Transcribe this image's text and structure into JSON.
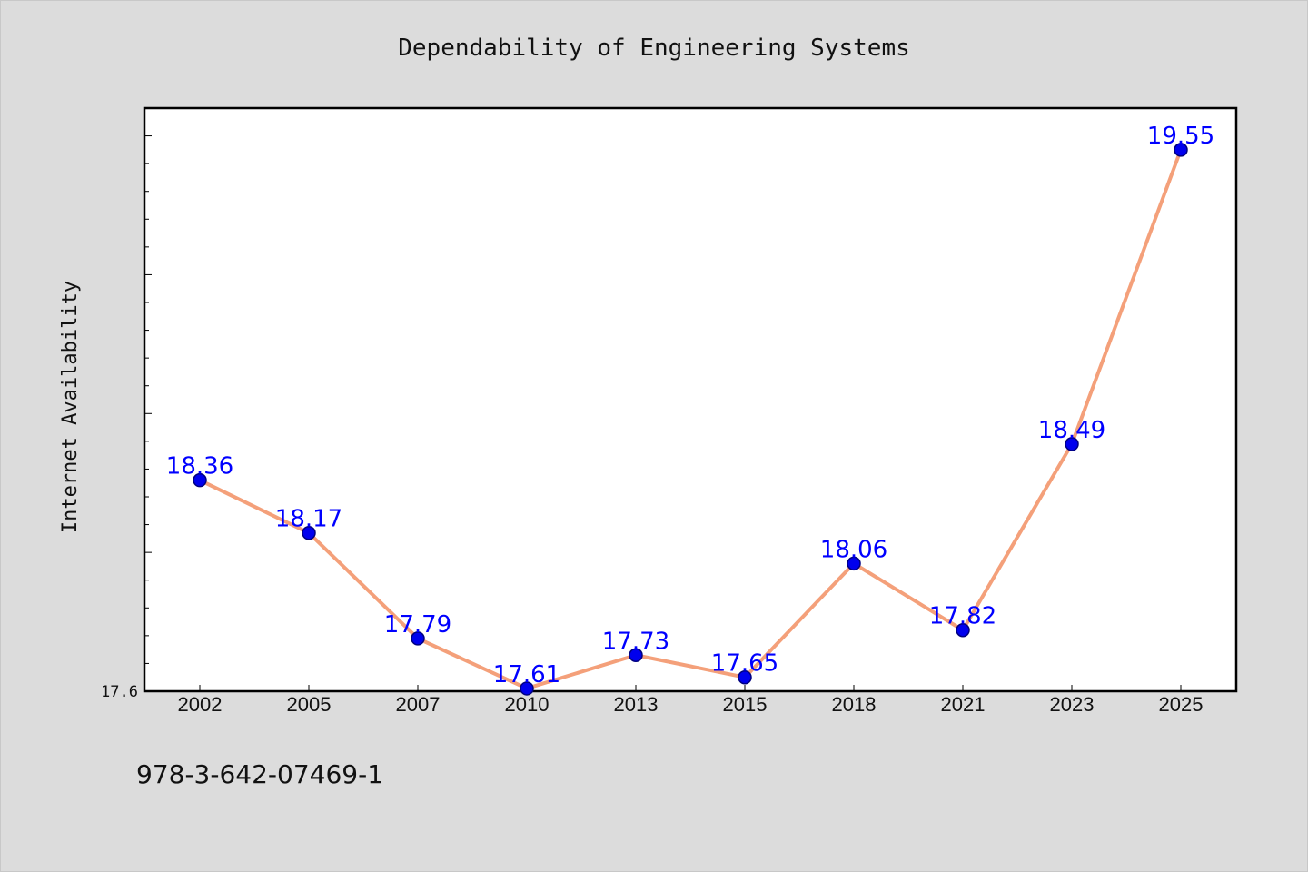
{
  "chart_data": {
    "type": "line",
    "title": "Dependability of Engineering Systems",
    "xlabel": "",
    "ylabel": "Internet Availability",
    "categories": [
      "2002",
      "2005",
      "2007",
      "2010",
      "2013",
      "2015",
      "2018",
      "2021",
      "2023",
      "2025"
    ],
    "series": [
      {
        "values": [
          18.36,
          18.17,
          17.79,
          17.61,
          17.73,
          17.65,
          18.06,
          17.82,
          18.49,
          19.55
        ],
        "data_labels": [
          "18.36",
          "18.17",
          "17.79",
          "17.61",
          "17.73",
          "17.65",
          "18.06",
          "17.82",
          "18.49",
          "19.55"
        ]
      }
    ],
    "ylim": [
      17.6,
      19.7
    ],
    "ytick_labels": [
      "17.6"
    ],
    "grid": false,
    "colors": {
      "line": "#f4a07a",
      "marker": "#0000ee",
      "marker_edge": "#000080",
      "data_label": "#0000ff",
      "background": "#dcdcdc",
      "plot_background": "#ffffff"
    }
  },
  "annotations": {
    "isbn": "978-3-642-07469-1"
  }
}
